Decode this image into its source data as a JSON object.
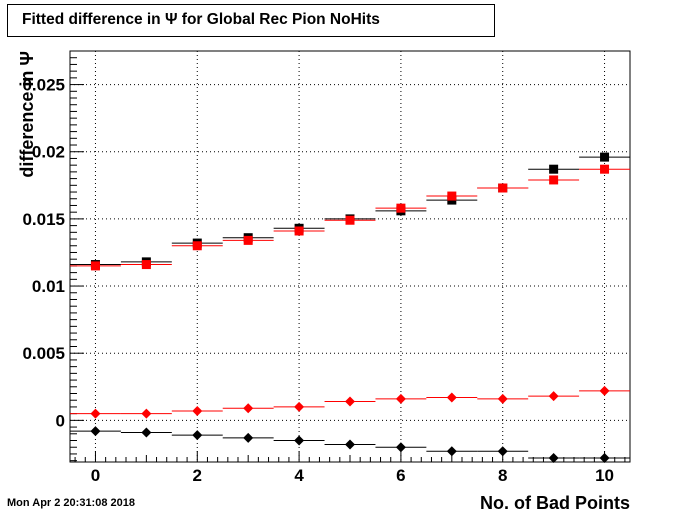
{
  "title": "Fitted difference in  Ψ  for Global Rec Pion NoHits",
  "timestamp": "Mon Apr  2 20:31:08 2018",
  "chart_data": {
    "type": "scatter",
    "title": "Fitted difference in  Ψ  for Global Rec Pion NoHits",
    "xlabel": "No. of Bad Points",
    "ylabel": "difference in  Ψ",
    "xlim": [
      -0.5,
      10.5
    ],
    "ylim": [
      -0.0031,
      0.0275
    ],
    "grid": true,
    "x_ticks": [
      "0",
      "2",
      "4",
      "6",
      "8",
      "10"
    ],
    "y_ticks": [
      "0",
      "0.005",
      "0.01",
      "0.015",
      "0.02",
      "0.025"
    ],
    "x": [
      0,
      1,
      2,
      3,
      4,
      5,
      6,
      7,
      8,
      9,
      10
    ],
    "series": [
      {
        "marker": "square",
        "color": "#000000",
        "values": [
          0.0116,
          0.0118,
          0.0132,
          0.0136,
          0.0143,
          0.015,
          0.0156,
          0.0164,
          0.0173,
          0.0187,
          0.0196
        ]
      },
      {
        "marker": "square",
        "color": "#ff0000",
        "values": [
          0.0115,
          0.0116,
          0.013,
          0.0134,
          0.0141,
          0.0149,
          0.0158,
          0.0167,
          0.0173,
          0.0179,
          0.0187
        ]
      },
      {
        "marker": "diamond",
        "color": "#ff0000",
        "values": [
          0.0005,
          0.0005,
          0.0007,
          0.0009,
          0.001,
          0.0014,
          0.0016,
          0.0017,
          0.0016,
          0.0018,
          0.0022
        ]
      },
      {
        "marker": "diamond",
        "color": "#000000",
        "values": [
          -0.0008,
          -0.0009,
          -0.0011,
          -0.0013,
          -0.0015,
          -0.0018,
          -0.002,
          -0.0023,
          -0.0023,
          -0.0028,
          -0.0028
        ]
      }
    ]
  }
}
